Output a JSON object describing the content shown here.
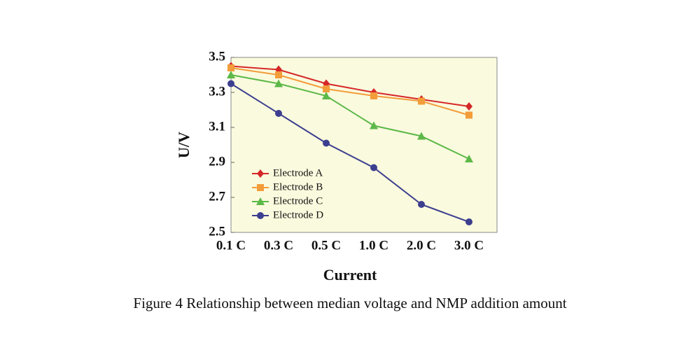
{
  "chart_data": {
    "type": "line",
    "title": "Figure 4 Relationship between median voltage and NMP addition amount",
    "x_label": "Current",
    "y_label": "U/V",
    "categories": [
      "0.1 C",
      "0.3 C",
      "0.5 C",
      "1.0 C",
      "2.0 C",
      "3.0 C"
    ],
    "series": [
      {
        "name": "Electrode A",
        "color": "#d62728",
        "marker": "diamond",
        "values": [
          3.45,
          3.43,
          3.35,
          3.3,
          3.26,
          3.22
        ]
      },
      {
        "name": "Electrode B",
        "color": "#f39c3a",
        "marker": "square",
        "values": [
          3.44,
          3.4,
          3.32,
          3.28,
          3.25,
          3.17
        ]
      },
      {
        "name": "Electrode C",
        "color": "#5cb848",
        "marker": "triangle",
        "values": [
          3.4,
          3.35,
          3.28,
          3.11,
          3.05,
          2.92
        ]
      },
      {
        "name": "Electrode D",
        "color": "#3c3f8f",
        "marker": "circle",
        "values": [
          3.35,
          3.18,
          3.01,
          2.87,
          2.66,
          2.56
        ]
      }
    ],
    "ylim": [
      2.5,
      3.5
    ],
    "yticks": [
      2.5,
      2.7,
      2.9,
      3.1,
      3.3,
      3.5
    ],
    "legend": "lower left"
  }
}
